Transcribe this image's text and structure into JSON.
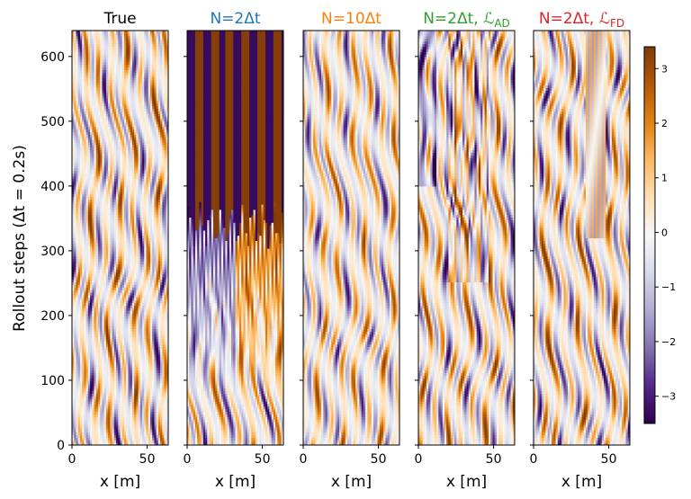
{
  "chart_data": {
    "type": "heatmap",
    "ylabel": "Rollout steps (Δt = 0.2s)",
    "xlabel": "x [m]",
    "xlim": [
      0,
      64
    ],
    "ylim": [
      0,
      640
    ],
    "x_ticks": [
      0,
      50
    ],
    "y_ticks": [
      0,
      100,
      200,
      300,
      400,
      500,
      600
    ],
    "colorbar": {
      "vmin": -3.5,
      "vmax": 3.4,
      "ticks": [
        -3,
        -2,
        -1,
        0,
        1,
        2,
        3
      ],
      "colormap": "PuOr_r",
      "colors": [
        "#2d004b",
        "#542788",
        "#8073ac",
        "#b2abd2",
        "#d8daeb",
        "#f7f7f7",
        "#fee0b6",
        "#fdb863",
        "#e08214",
        "#b35806",
        "#7f3b08"
      ]
    },
    "panels": [
      {
        "title": "True",
        "title_color": "#000000",
        "pattern": "true"
      },
      {
        "title": "N=2Δt",
        "title_color": "#1f77b4",
        "pattern": "n2"
      },
      {
        "title": "N=10Δt",
        "title_color": "#ff7f0e",
        "pattern": "n10"
      },
      {
        "title": "N=2Δt, ℒ",
        "title_sub": "AD",
        "title_color": "#2ca02c",
        "pattern": "ad"
      },
      {
        "title": "N=2Δt, ℒ",
        "title_sub": "FD",
        "title_color": "#d62728",
        "pattern": "fd"
      }
    ]
  }
}
